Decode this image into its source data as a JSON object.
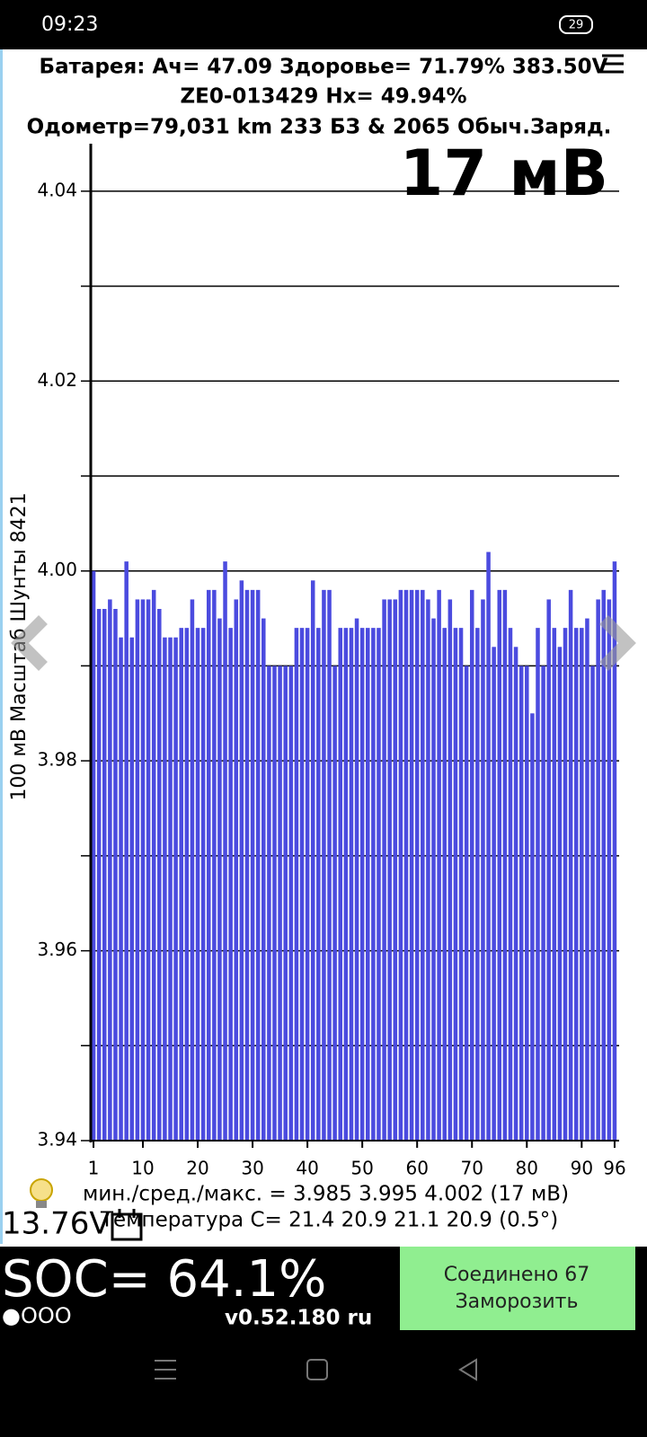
{
  "status_bar": {
    "time": "09:23",
    "battery": "29"
  },
  "header": {
    "line1": "Батарея: Ач= 47.09 Здоровье= 71.79% 383.50V",
    "line2": "ZE0-013429   Hx= 49.94%",
    "line3": "Одометр=79,031 km 233 БЗ & 2065 Обыч.Заряд."
  },
  "readout": "17 мВ",
  "chart_data": {
    "type": "bar",
    "y_label": "100 мВ Масштаб  Шунты 8421",
    "categories": [
      "1",
      null,
      null,
      null,
      null,
      null,
      null,
      null,
      null,
      "10",
      null,
      null,
      null,
      null,
      null,
      null,
      null,
      null,
      null,
      "20",
      null,
      null,
      null,
      null,
      null,
      null,
      null,
      null,
      null,
      "30",
      null,
      null,
      null,
      null,
      null,
      null,
      null,
      null,
      null,
      "40",
      null,
      null,
      null,
      null,
      null,
      null,
      null,
      null,
      null,
      "50",
      null,
      null,
      null,
      null,
      null,
      null,
      null,
      null,
      null,
      "60",
      null,
      null,
      null,
      null,
      null,
      null,
      null,
      null,
      null,
      "70",
      null,
      null,
      null,
      null,
      null,
      null,
      null,
      null,
      null,
      "80",
      null,
      null,
      null,
      null,
      null,
      null,
      null,
      null,
      null,
      "90",
      null,
      null,
      null,
      null,
      null,
      "96"
    ],
    "values": [
      4.0,
      3.996,
      3.996,
      3.997,
      3.996,
      3.993,
      4.001,
      3.993,
      3.997,
      3.997,
      3.997,
      3.998,
      3.996,
      3.993,
      3.993,
      3.993,
      3.994,
      3.994,
      3.997,
      3.994,
      3.994,
      3.998,
      3.998,
      3.995,
      4.001,
      3.994,
      3.997,
      3.999,
      3.998,
      3.998,
      3.998,
      3.995,
      3.99,
      3.99,
      3.99,
      3.99,
      3.99,
      3.994,
      3.994,
      3.994,
      3.999,
      3.994,
      3.998,
      3.998,
      3.99,
      3.994,
      3.994,
      3.994,
      3.995,
      3.994,
      3.994,
      3.994,
      3.994,
      3.997,
      3.997,
      3.997,
      3.998,
      3.998,
      3.998,
      3.998,
      3.998,
      3.997,
      3.995,
      3.998,
      3.994,
      3.997,
      3.994,
      3.994,
      3.99,
      3.998,
      3.994,
      3.997,
      4.002,
      3.992,
      3.998,
      3.998,
      3.994,
      3.992,
      3.99,
      3.99,
      3.985,
      3.994,
      3.99,
      3.997,
      3.994,
      3.992,
      3.994,
      3.998,
      3.994,
      3.994,
      3.995,
      3.99,
      3.997,
      3.998,
      3.997,
      4.001
    ],
    "color": "#4b4bdf",
    "ylim": [
      3.94,
      4.045
    ],
    "yticks": [
      3.94,
      3.96,
      3.98,
      {
        "value": 4,
        "label": "4.00"
      },
      4.02,
      4.04
    ],
    "minor_yticks": [
      3.95,
      3.97,
      3.99,
      4.01,
      4.03
    ],
    "grid": true
  },
  "stats": {
    "range": "мин./сред./макс. = 3.985 3.995 4.002  (17 мВ)",
    "temperature": "Температура C= 21.4  20.9  21.1  20.9  (0.5°)"
  },
  "voltage": "13.76V",
  "soc": "SOC= 64.1%",
  "dots": "●OOO",
  "version": "v0.52.180 ru",
  "button": {
    "line1": "Соединено 67",
    "line2": "Заморозить"
  }
}
